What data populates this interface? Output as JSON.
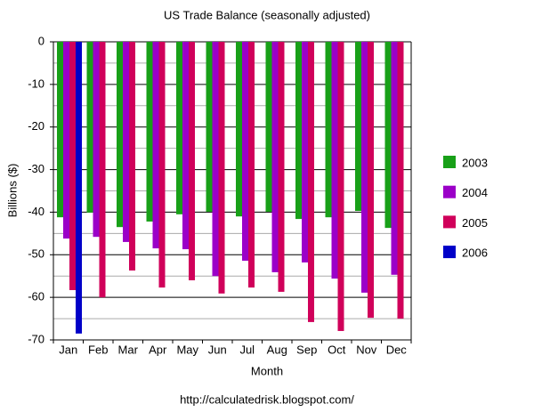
{
  "chart_data": {
    "type": "bar",
    "title": "US Trade Balance (seasonally adjusted)",
    "x_label": "Month",
    "y_label": "Billions ($)",
    "footer": "http://calculatedrisk.blogspot.com/",
    "categories": [
      "Jan",
      "Feb",
      "Mar",
      "Apr",
      "May",
      "Jun",
      "Jul",
      "Aug",
      "Sep",
      "Oct",
      "Nov",
      "Dec"
    ],
    "series": [
      {
        "name": "2003",
        "color": "#18a018",
        "values": [
          -41.2,
          -40.1,
          -43.5,
          -42.2,
          -40.5,
          -39.9,
          -41.0,
          -39.9,
          -41.6,
          -41.2,
          -39.7,
          -43.7
        ]
      },
      {
        "name": "2004",
        "color": "#9b00c8",
        "values": [
          -46.2,
          -45.8,
          -47.0,
          -48.5,
          -48.7,
          -55.0,
          -51.4,
          -54.1,
          -51.8,
          -55.6,
          -58.9,
          -54.7
        ]
      },
      {
        "name": "2005",
        "color": "#d0005a",
        "values": [
          -58.3,
          -60.0,
          -53.7,
          -57.7,
          -56.0,
          -59.1,
          -57.7,
          -58.7,
          -65.8,
          -67.9,
          -64.8,
          -65.0
        ]
      },
      {
        "name": "2006",
        "color": "#0000c8",
        "values": [
          -68.5,
          null,
          null,
          null,
          null,
          null,
          null,
          null,
          null,
          null,
          null,
          null
        ]
      }
    ],
    "ylim": [
      -70,
      0
    ],
    "yticks": [
      0,
      -10,
      -20,
      -30,
      -40,
      -50,
      -60,
      -70
    ],
    "yminorticks": [
      -5,
      -15,
      -25,
      -35,
      -45,
      -55,
      -65
    ],
    "grid": true,
    "legend": "right"
  }
}
